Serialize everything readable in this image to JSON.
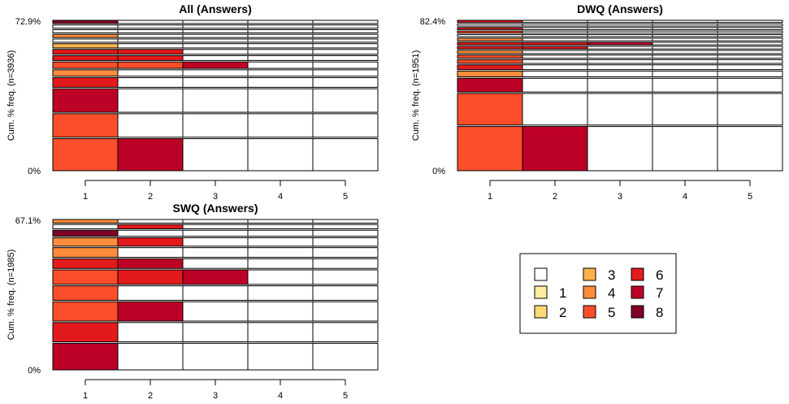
{
  "chart_data": [
    {
      "type": "heatmap",
      "subtype": "sequence-index-plot",
      "title": "All (Answers)",
      "ylabel": "Cum. % freq. (n=3936)",
      "ytick_labels": [
        "0%",
        "72.9%"
      ],
      "xticks": [
        1,
        2,
        3,
        4,
        5
      ],
      "rows": [
        {
          "weight": 3.0,
          "states": [
            5,
            7,
            null,
            null,
            null
          ]
        },
        {
          "weight": 2.2,
          "states": [
            5,
            null,
            null,
            null,
            null
          ]
        },
        {
          "weight": 2.2,
          "states": [
            7,
            null,
            null,
            null,
            null
          ]
        },
        {
          "weight": 0.9,
          "states": [
            6,
            null,
            null,
            null,
            null
          ]
        },
        {
          "weight": 0.6,
          "states": [
            4,
            null,
            null,
            null,
            null
          ]
        },
        {
          "weight": 0.6,
          "states": [
            5,
            5,
            7,
            null,
            null
          ]
        },
        {
          "weight": 0.45,
          "states": [
            6,
            6,
            null,
            null,
            null
          ]
        },
        {
          "weight": 0.45,
          "states": [
            6,
            6,
            null,
            null,
            null
          ]
        },
        {
          "weight": 0.4,
          "states": [
            3,
            null,
            null,
            null,
            null
          ]
        },
        {
          "weight": 0.3,
          "states": [
            null,
            null,
            null,
            null,
            null
          ]
        },
        {
          "weight": 0.3,
          "states": [
            4,
            null,
            null,
            null,
            null
          ]
        },
        {
          "weight": 0.3,
          "states": [
            null,
            null,
            null,
            null,
            null
          ]
        },
        {
          "weight": 0.3,
          "states": [
            null,
            null,
            null,
            null,
            null
          ]
        },
        {
          "weight": 0.3,
          "states": [
            8,
            null,
            null,
            null,
            null
          ]
        }
      ]
    },
    {
      "type": "heatmap",
      "subtype": "sequence-index-plot",
      "title": "DWQ (Answers)",
      "ylabel": "Cum. % freq. (n=1951)",
      "ytick_labels": [
        "0%",
        "82.4%"
      ],
      "xticks": [
        1,
        2,
        3,
        4,
        5
      ],
      "rows": [
        {
          "weight": 4.2,
          "states": [
            5,
            7,
            null,
            null,
            null
          ]
        },
        {
          "weight": 3.0,
          "states": [
            5,
            null,
            null,
            null,
            null
          ]
        },
        {
          "weight": 1.3,
          "states": [
            7,
            null,
            null,
            null,
            null
          ]
        },
        {
          "weight": 0.55,
          "states": [
            4,
            null,
            null,
            null,
            null
          ]
        },
        {
          "weight": 0.45,
          "states": [
            6,
            null,
            null,
            null,
            null
          ]
        },
        {
          "weight": 0.35,
          "states": [
            5,
            null,
            null,
            null,
            null
          ]
        },
        {
          "weight": 0.3,
          "states": [
            5,
            null,
            null,
            null,
            null
          ]
        },
        {
          "weight": 0.3,
          "states": [
            4,
            null,
            null,
            null,
            null
          ]
        },
        {
          "weight": 0.25,
          "states": [
            6,
            6,
            null,
            null,
            null
          ]
        },
        {
          "weight": 0.25,
          "states": [
            6,
            6,
            7,
            null,
            null
          ]
        },
        {
          "weight": 0.25,
          "states": [
            4,
            null,
            null,
            null,
            null
          ]
        },
        {
          "weight": 0.2,
          "states": [
            null,
            null,
            null,
            null,
            null
          ]
        },
        {
          "weight": 0.2,
          "states": [
            5,
            null,
            null,
            null,
            null
          ]
        },
        {
          "weight": 0.2,
          "states": [
            6,
            null,
            null,
            null,
            null
          ]
        },
        {
          "weight": 0.2,
          "states": [
            null,
            null,
            null,
            null,
            null
          ]
        },
        {
          "weight": 0.2,
          "states": [
            6,
            null,
            null,
            null,
            null
          ]
        }
      ]
    },
    {
      "type": "heatmap",
      "subtype": "sequence-index-plot",
      "title": "SWQ (Answers)",
      "ylabel": "Cum. % freq. (n=1985)",
      "ytick_labels": [
        "0%",
        "67.1%"
      ],
      "xticks": [
        1,
        2,
        3,
        4,
        5
      ],
      "rows": [
        {
          "weight": 2.2,
          "states": [
            7,
            null,
            null,
            null,
            null
          ]
        },
        {
          "weight": 1.6,
          "states": [
            6,
            null,
            null,
            null,
            null
          ]
        },
        {
          "weight": 1.6,
          "states": [
            5,
            7,
            null,
            null,
            null
          ]
        },
        {
          "weight": 1.2,
          "states": [
            5,
            null,
            null,
            null,
            null
          ]
        },
        {
          "weight": 1.2,
          "states": [
            5,
            6,
            7,
            null,
            null
          ]
        },
        {
          "weight": 0.8,
          "states": [
            6,
            7,
            null,
            null,
            null
          ]
        },
        {
          "weight": 0.8,
          "states": [
            4,
            null,
            null,
            null,
            null
          ]
        },
        {
          "weight": 0.7,
          "states": [
            4,
            6,
            null,
            null,
            null
          ]
        },
        {
          "weight": 0.5,
          "states": [
            8,
            null,
            null,
            null,
            null
          ]
        },
        {
          "weight": 0.35,
          "states": [
            null,
            6,
            null,
            null,
            null
          ]
        },
        {
          "weight": 0.3,
          "states": [
            4,
            null,
            null,
            null,
            null
          ]
        }
      ]
    }
  ],
  "legend": {
    "entries": [
      {
        "label": "",
        "color": "#FFFFFF"
      },
      {
        "label": "1",
        "color": "#FFEDA0"
      },
      {
        "label": "2",
        "color": "#FED976"
      },
      {
        "label": "3",
        "color": "#FEB24C"
      },
      {
        "label": "4",
        "color": "#FD8D3C"
      },
      {
        "label": "5",
        "color": "#FC4E2A"
      },
      {
        "label": "6",
        "color": "#E31A1C"
      },
      {
        "label": "7",
        "color": "#BD0026"
      },
      {
        "label": "8",
        "color": "#800026"
      }
    ]
  }
}
